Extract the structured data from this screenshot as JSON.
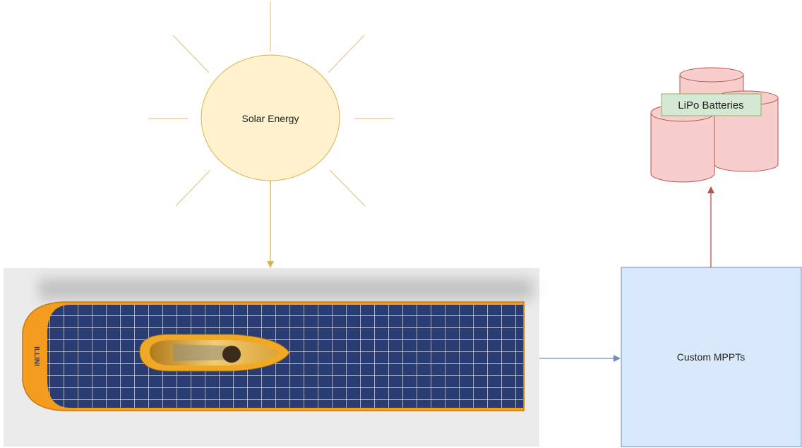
{
  "nodes": {
    "sun": {
      "label": "Solar Energy"
    },
    "batteries": {
      "label": "LiPo Batteries"
    },
    "mppt": {
      "label": "Custom MPPTs"
    },
    "car": {
      "logo_text": "ILLINI"
    }
  },
  "colors": {
    "sun_fill": "#fff2cc",
    "sun_stroke": "#d6b656",
    "ray": "#e6d49a",
    "arrow_solar": "#d6b656",
    "arrow_mppt": "#6c8ebf",
    "arrow_battery": "#b85450",
    "battery_fill": "#f8cecc",
    "battery_stroke": "#b85450",
    "battery_label_fill": "#d5e8d4",
    "battery_label_stroke": "#82b366",
    "mppt_fill": "#dae8fc",
    "mppt_stroke": "#6c8ebf",
    "panel_bg": "#ebebeb",
    "car_body": "#f5a623",
    "solar_cell": "#233466"
  },
  "icons": {
    "sun": "sun-icon",
    "batteries": "battery-cylinders-icon",
    "car": "solar-car-icon"
  }
}
